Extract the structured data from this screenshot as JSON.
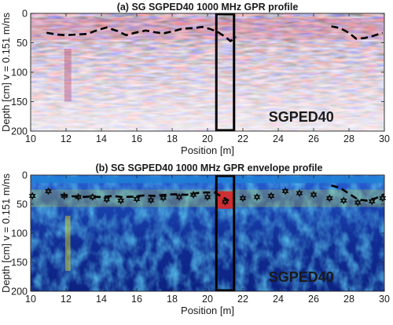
{
  "colors": {
    "gpr_positive": "#c83c3c",
    "gpr_negative": "#3c46c8",
    "envelope_low": "#0b1e7a",
    "envelope_mid": "#1f7fd6",
    "envelope_high": "#e8e020",
    "envelope_peak": "#e02020",
    "interface_line": "#000000",
    "highlight_box": "#000000"
  },
  "chart_data": [
    {
      "type": "heatmap",
      "title": "(a)  SG SGPED40 1000 MHz GPR profile",
      "xlabel": "Position [m]",
      "ylabel": "Depth [cm] v = 0.151 m/ns",
      "xlim": [
        10,
        30
      ],
      "ylim": [
        200,
        0
      ],
      "xticks": [
        10,
        12,
        14,
        16,
        18,
        20,
        22,
        24,
        26,
        28,
        30
      ],
      "yticks": [
        0,
        50,
        100,
        150,
        200
      ],
      "annotation": "SGPED40",
      "highlight_box": {
        "x": [
          20.5,
          21.5
        ],
        "y": [
          0,
          200
        ]
      },
      "interface_line": {
        "style": "dashed",
        "x": [
          10.9,
          11.5,
          12.0,
          12.6,
          13.2,
          13.8,
          14.3,
          14.9,
          15.4,
          15.9,
          16.5,
          17.0,
          17.5,
          18.1,
          18.6,
          19.2,
          19.7,
          20.2,
          20.6,
          21.0,
          21.3,
          21.6
        ],
        "y": [
          33,
          36,
          37,
          36,
          35,
          28,
          24,
          30,
          37,
          33,
          29,
          32,
          34,
          30,
          26,
          25,
          23,
          27,
          32,
          40,
          47,
          40
        ]
      },
      "interface_line_2": {
        "style": "dashed",
        "x": [
          27.0,
          27.5,
          28.0,
          28.4,
          28.9,
          29.4,
          29.9
        ],
        "y": [
          22,
          25,
          33,
          43,
          42,
          38,
          33
        ]
      }
    },
    {
      "type": "heatmap",
      "title": "(b)  SG SGPED40 1000 MHz GPR envelope profile",
      "xlabel": "Position [m]",
      "ylabel": "Depth [cm] v = 0.151 m/ns",
      "xlim": [
        10,
        30
      ],
      "ylim": [
        200,
        0
      ],
      "xticks": [
        10,
        12,
        14,
        16,
        18,
        20,
        22,
        24,
        26,
        28,
        30
      ],
      "yticks": [
        0,
        50,
        100,
        150,
        200
      ],
      "annotation": "SGPED40",
      "highlight_box": {
        "x": [
          20.5,
          21.5
        ],
        "y": [
          0,
          200
        ]
      },
      "interface_line": {
        "style": "dashed",
        "x": [
          11.7,
          12.2,
          12.8,
          13.4,
          14.0,
          14.6,
          15.2,
          15.8,
          16.4,
          17.0,
          17.6,
          18.2,
          18.8,
          19.4,
          19.9,
          20.4,
          20.8,
          21.2
        ],
        "y": [
          34,
          36,
          38,
          37,
          38,
          36,
          38,
          37,
          35,
          36,
          34,
          33,
          34,
          31,
          30,
          30,
          37,
          44
        ]
      },
      "interface_line_2": {
        "style": "dashed",
        "x": [
          27.0,
          27.5,
          28.0,
          28.5,
          29.0,
          29.5,
          30.0
        ],
        "y": [
          18,
          22,
          32,
          42,
          44,
          40,
          33
        ]
      },
      "star_markers": {
        "x": [
          10.1,
          11.0,
          11.9,
          12.7,
          13.5,
          14.3,
          15.1,
          16.0,
          16.8,
          17.5,
          18.4,
          19.2,
          20.0,
          21.0,
          22.0,
          22.8,
          23.6,
          24.4,
          25.2,
          26.0,
          26.9,
          27.7,
          28.5,
          29.3,
          29.9
        ],
        "y": [
          36,
          28,
          36,
          38,
          38,
          42,
          44,
          41,
          43,
          39,
          38,
          34,
          38,
          46,
          40,
          38,
          36,
          28,
          31,
          34,
          40,
          44,
          47,
          45,
          40
        ]
      }
    }
  ]
}
